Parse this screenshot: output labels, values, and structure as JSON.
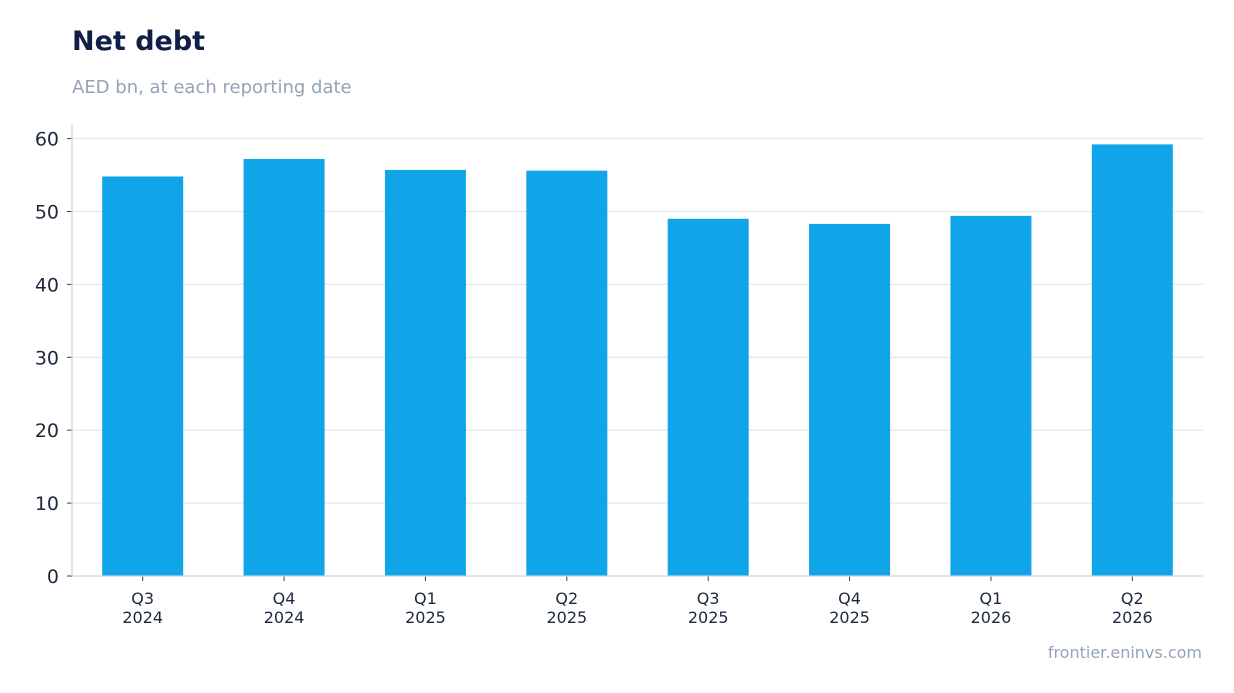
{
  "header": {
    "title": "Net debt",
    "subtitle": "AED bn, at each reporting date"
  },
  "footer": {
    "source": "frontier.eninvs.com"
  },
  "chart_data": {
    "type": "bar",
    "title": "Net debt",
    "subtitle": "AED bn, at each reporting date",
    "categories": [
      [
        "Q3",
        "2024"
      ],
      [
        "Q4",
        "2024"
      ],
      [
        "Q1",
        "2025"
      ],
      [
        "Q2",
        "2025"
      ],
      [
        "Q3",
        "2025"
      ],
      [
        "Q4",
        "2025"
      ],
      [
        "Q1",
        "2026"
      ],
      [
        "Q2",
        "2026"
      ]
    ],
    "values": [
      54.8,
      57.2,
      55.7,
      55.6,
      49.0,
      48.3,
      49.4,
      59.2
    ],
    "ylim": [
      0,
      62
    ],
    "yticks": [
      0,
      10,
      20,
      30,
      40,
      50,
      60
    ],
    "grid": true,
    "colors": {
      "bar": "#10a5e8",
      "grid": "#e2e8f0",
      "axis": "#cbd5e1"
    }
  }
}
